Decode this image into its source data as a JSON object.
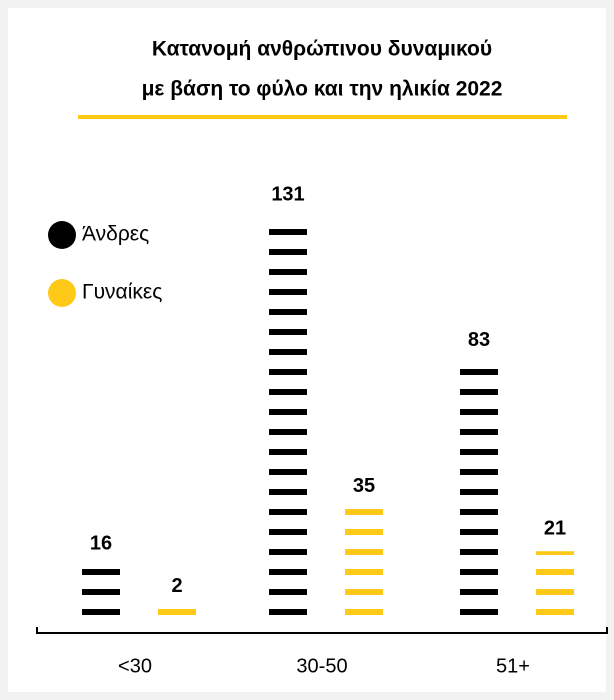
{
  "chart_data": {
    "type": "bar",
    "title": [
      "Κατανομή ανθρώπινου δυναμικού",
      "με βάση το φύλο και την ηλικία 2022"
    ],
    "categories": [
      "<30",
      "30-50",
      "51+"
    ],
    "series": [
      {
        "name": "Άνδρες",
        "color": "#000000",
        "values": [
          16,
          131,
          83
        ]
      },
      {
        "name": "Γυναίκες",
        "color": "#ffc917",
        "values": [
          2,
          35,
          21
        ]
      }
    ]
  }
}
